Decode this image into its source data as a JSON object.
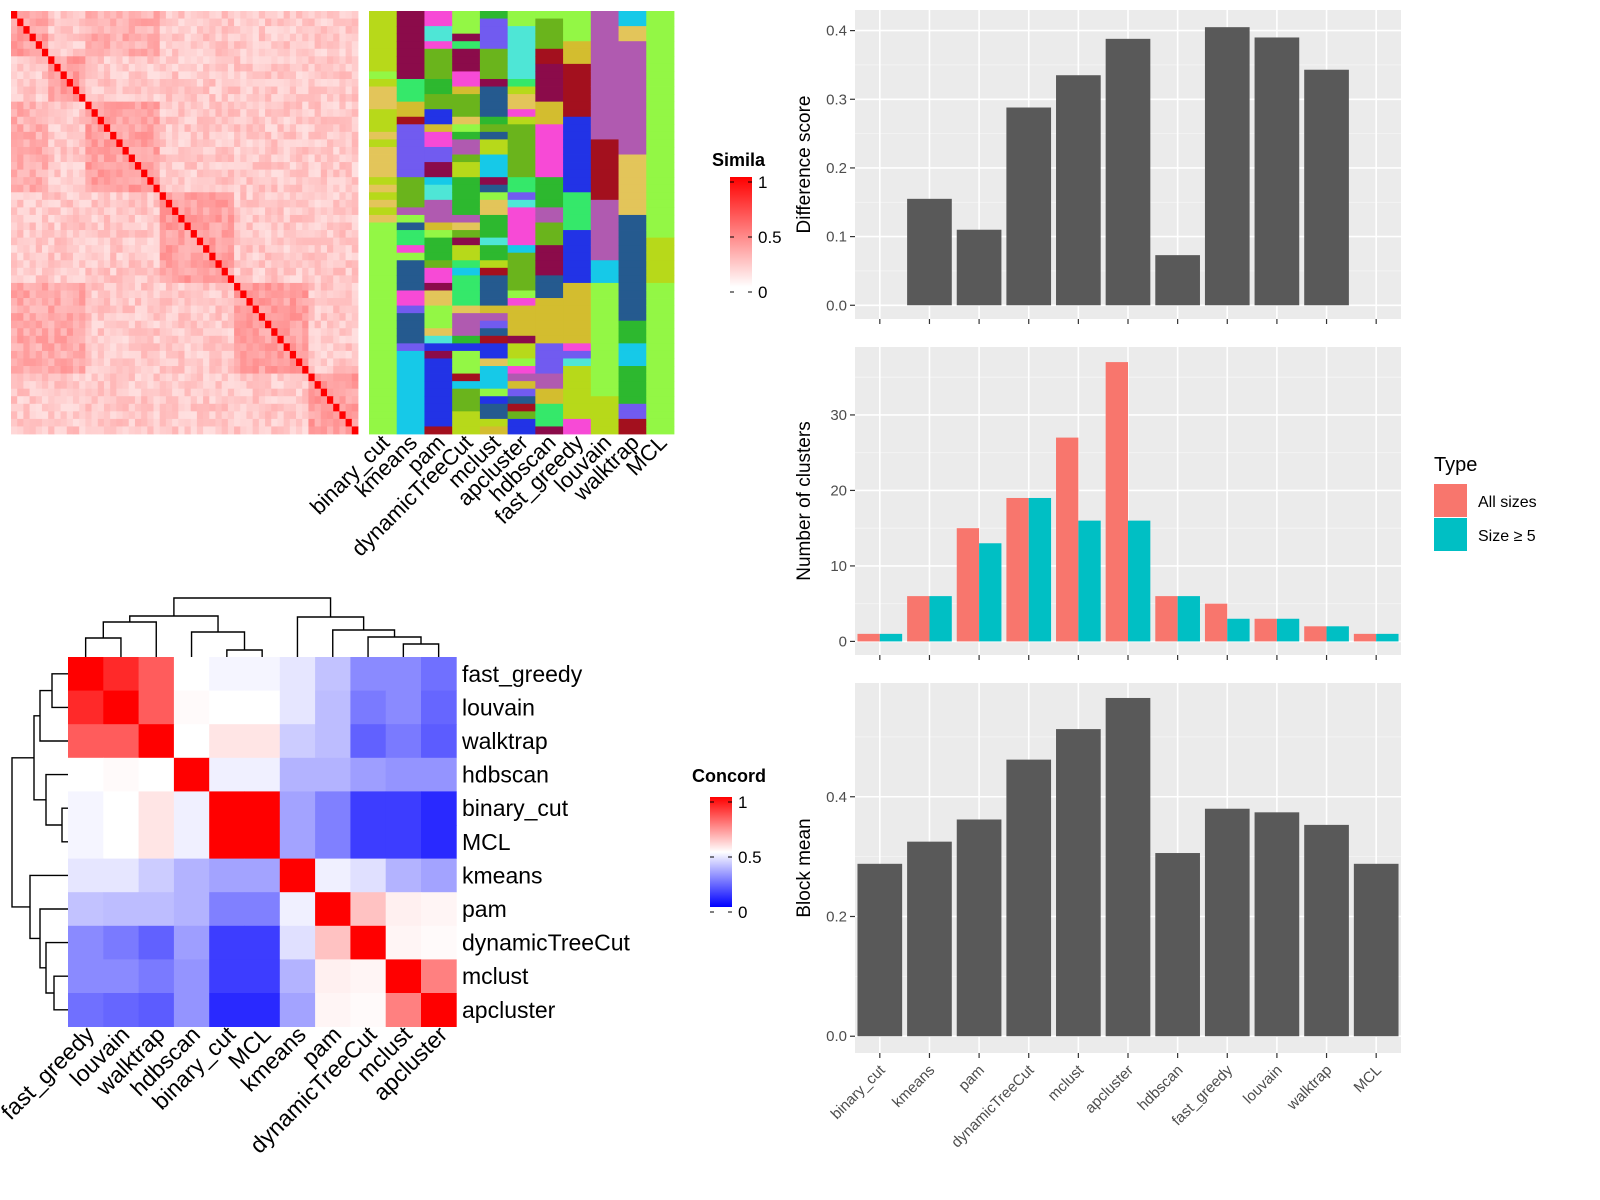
{
  "chart_data": [
    {
      "type": "heatmap",
      "panel": "similarity-heatmap",
      "legend_title": "Simila",
      "legend_ticks": [
        "1",
        "0.5",
        "0"
      ],
      "legend_range": [
        0,
        1
      ],
      "colors": {
        "low": "#ffffff",
        "high": "#ff0000"
      }
    },
    {
      "type": "heatmap",
      "panel": "partition-columns",
      "columns": [
        "binary_cut",
        "kmeans",
        "pam",
        "dynamicTreeCut",
        "mclust",
        "apcluster",
        "hdbscan",
        "fast_greedy",
        "louvain",
        "walktrap",
        "MCL"
      ],
      "palette": [
        "#93f745",
        "#b7d91a",
        "#2db82f",
        "#e3c55a",
        "#d3bd2f",
        "#16c9e8",
        "#f74ad6",
        "#8b0b4a",
        "#2233e6",
        "#715bf0",
        "#a3101e",
        "#255a8f",
        "#4ee6d6",
        "#35e86a",
        "#b05ab0",
        "#6ab41c"
      ]
    },
    {
      "type": "heatmap",
      "panel": "concordance-heatmap",
      "legend_title": "Concord",
      "legend_ticks": [
        "1",
        "0.5",
        "0"
      ],
      "legend_range": [
        0,
        1
      ],
      "colors": {
        "low": "#0000ff",
        "mid": "#ffffff",
        "high": "#ff0000"
      },
      "labels": [
        "fast_greedy",
        "louvain",
        "walktrap",
        "hdbscan",
        "binary_cut",
        "MCL",
        "kmeans",
        "pam",
        "dynamicTreeCut",
        "mclust",
        "apcluster"
      ],
      "matrix": [
        [
          1.0,
          0.92,
          0.82,
          0.5,
          0.48,
          0.48,
          0.45,
          0.38,
          0.27,
          0.27,
          0.22
        ],
        [
          0.92,
          1.0,
          0.82,
          0.51,
          0.5,
          0.5,
          0.45,
          0.37,
          0.24,
          0.27,
          0.2
        ],
        [
          0.82,
          0.82,
          1.0,
          0.5,
          0.55,
          0.55,
          0.4,
          0.37,
          0.19,
          0.24,
          0.18
        ],
        [
          0.5,
          0.51,
          0.5,
          1.0,
          0.47,
          0.47,
          0.35,
          0.35,
          0.31,
          0.29,
          0.29
        ],
        [
          0.48,
          0.5,
          0.55,
          0.47,
          1.0,
          1.0,
          0.32,
          0.25,
          0.12,
          0.12,
          0.08
        ],
        [
          0.48,
          0.5,
          0.55,
          0.47,
          1.0,
          1.0,
          0.32,
          0.25,
          0.12,
          0.12,
          0.08
        ],
        [
          0.45,
          0.45,
          0.4,
          0.35,
          0.32,
          0.32,
          1.0,
          0.47,
          0.44,
          0.35,
          0.32
        ],
        [
          0.38,
          0.37,
          0.37,
          0.35,
          0.25,
          0.25,
          0.47,
          1.0,
          0.62,
          0.53,
          0.52
        ],
        [
          0.27,
          0.24,
          0.19,
          0.31,
          0.12,
          0.12,
          0.44,
          0.62,
          1.0,
          0.52,
          0.51
        ],
        [
          0.27,
          0.27,
          0.24,
          0.29,
          0.12,
          0.12,
          0.35,
          0.53,
          0.52,
          1.0,
          0.75
        ],
        [
          0.22,
          0.2,
          0.18,
          0.29,
          0.08,
          0.08,
          0.32,
          0.52,
          0.51,
          0.75,
          1.0
        ]
      ]
    },
    {
      "type": "bar",
      "panel": "difference-score",
      "categories": [
        "binary_cut",
        "kmeans",
        "pam",
        "dynamicTreeCut",
        "mclust",
        "apcluster",
        "hdbscan",
        "fast_greedy",
        "louvain",
        "walktrap",
        "MCL"
      ],
      "values": [
        0.0,
        0.155,
        0.11,
        0.288,
        0.335,
        0.388,
        0.073,
        0.405,
        0.39,
        0.343,
        0.0
      ],
      "ylabel": "Difference score",
      "ylim": [
        -0.02,
        0.43
      ],
      "yticks": [
        "0.0",
        "0.1",
        "0.2",
        "0.3",
        "0.4"
      ],
      "grid": true
    },
    {
      "type": "bar",
      "panel": "number-of-clusters",
      "categories": [
        "binary_cut",
        "kmeans",
        "pam",
        "dynamicTreeCut",
        "mclust",
        "apcluster",
        "hdbscan",
        "fast_greedy",
        "louvain",
        "walktrap",
        "MCL"
      ],
      "series": [
        {
          "name": "All sizes",
          "color": "#f8766d",
          "values": [
            1,
            6,
            15,
            19,
            27,
            37,
            6,
            5,
            3,
            2,
            1
          ]
        },
        {
          "name": "Size ≥ 5",
          "color": "#00bfc4",
          "values": [
            1,
            6,
            13,
            19,
            16,
            16,
            6,
            3,
            3,
            2,
            1
          ]
        }
      ],
      "ylabel": "Number of clusters",
      "ylim": [
        -1.8,
        39
      ],
      "yticks": [
        "0",
        "10",
        "20",
        "30"
      ],
      "legend_title": "Type",
      "legend_placement": "right",
      "grid": true
    },
    {
      "type": "bar",
      "panel": "block-mean",
      "categories": [
        "binary_cut",
        "kmeans",
        "pam",
        "dynamicTreeCut",
        "mclust",
        "apcluster",
        "hdbscan",
        "fast_greedy",
        "louvain",
        "walktrap",
        "MCL"
      ],
      "values": [
        0.288,
        0.325,
        0.362,
        0.462,
        0.513,
        0.565,
        0.306,
        0.38,
        0.374,
        0.353,
        0.288
      ],
      "ylabel": "Block mean",
      "ylim": [
        -0.028,
        0.59
      ],
      "yticks": [
        "0.0",
        "0.2",
        "0.4"
      ],
      "grid": true
    }
  ]
}
